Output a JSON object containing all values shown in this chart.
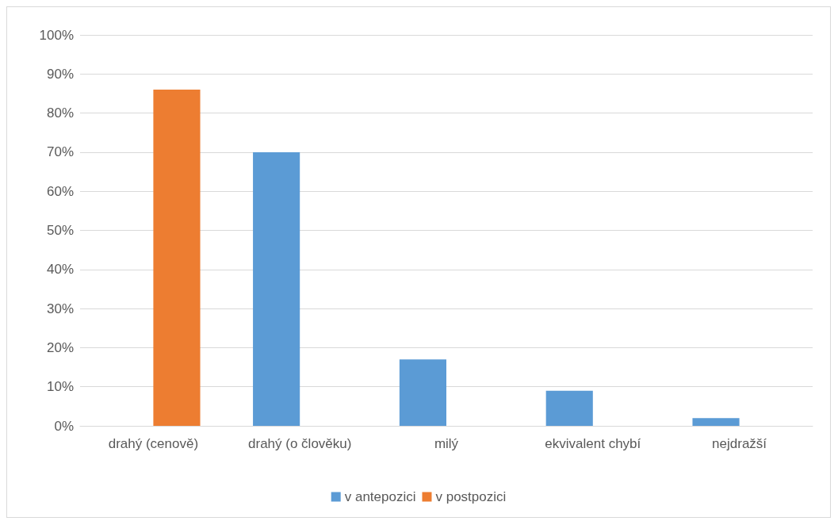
{
  "chart_data": {
    "type": "bar",
    "categories": [
      "drahý (cenově)",
      "drahý (o člověku)",
      "milý",
      "ekvivalent chybí",
      "nejdražší"
    ],
    "series": [
      {
        "name": "v antepozici",
        "color": "#5b9bd5",
        "values": [
          0,
          70,
          17,
          9,
          2
        ]
      },
      {
        "name": "v postpozici",
        "color": "#ed7d31",
        "values": [
          86,
          0,
          0,
          0,
          0
        ]
      }
    ],
    "ylim": [
      0,
      100
    ],
    "yticks": [
      {
        "value": 0,
        "label": "0%"
      },
      {
        "value": 10,
        "label": "10%"
      },
      {
        "value": 20,
        "label": "20%"
      },
      {
        "value": 30,
        "label": "30%"
      },
      {
        "value": 40,
        "label": "40%"
      },
      {
        "value": 50,
        "label": "50%"
      },
      {
        "value": 60,
        "label": "60%"
      },
      {
        "value": 70,
        "label": "70%"
      },
      {
        "value": 80,
        "label": "80%"
      },
      {
        "value": 90,
        "label": "90%"
      },
      {
        "value": 100,
        "label": "100%"
      }
    ],
    "grid": "y",
    "legend": "bottom"
  }
}
